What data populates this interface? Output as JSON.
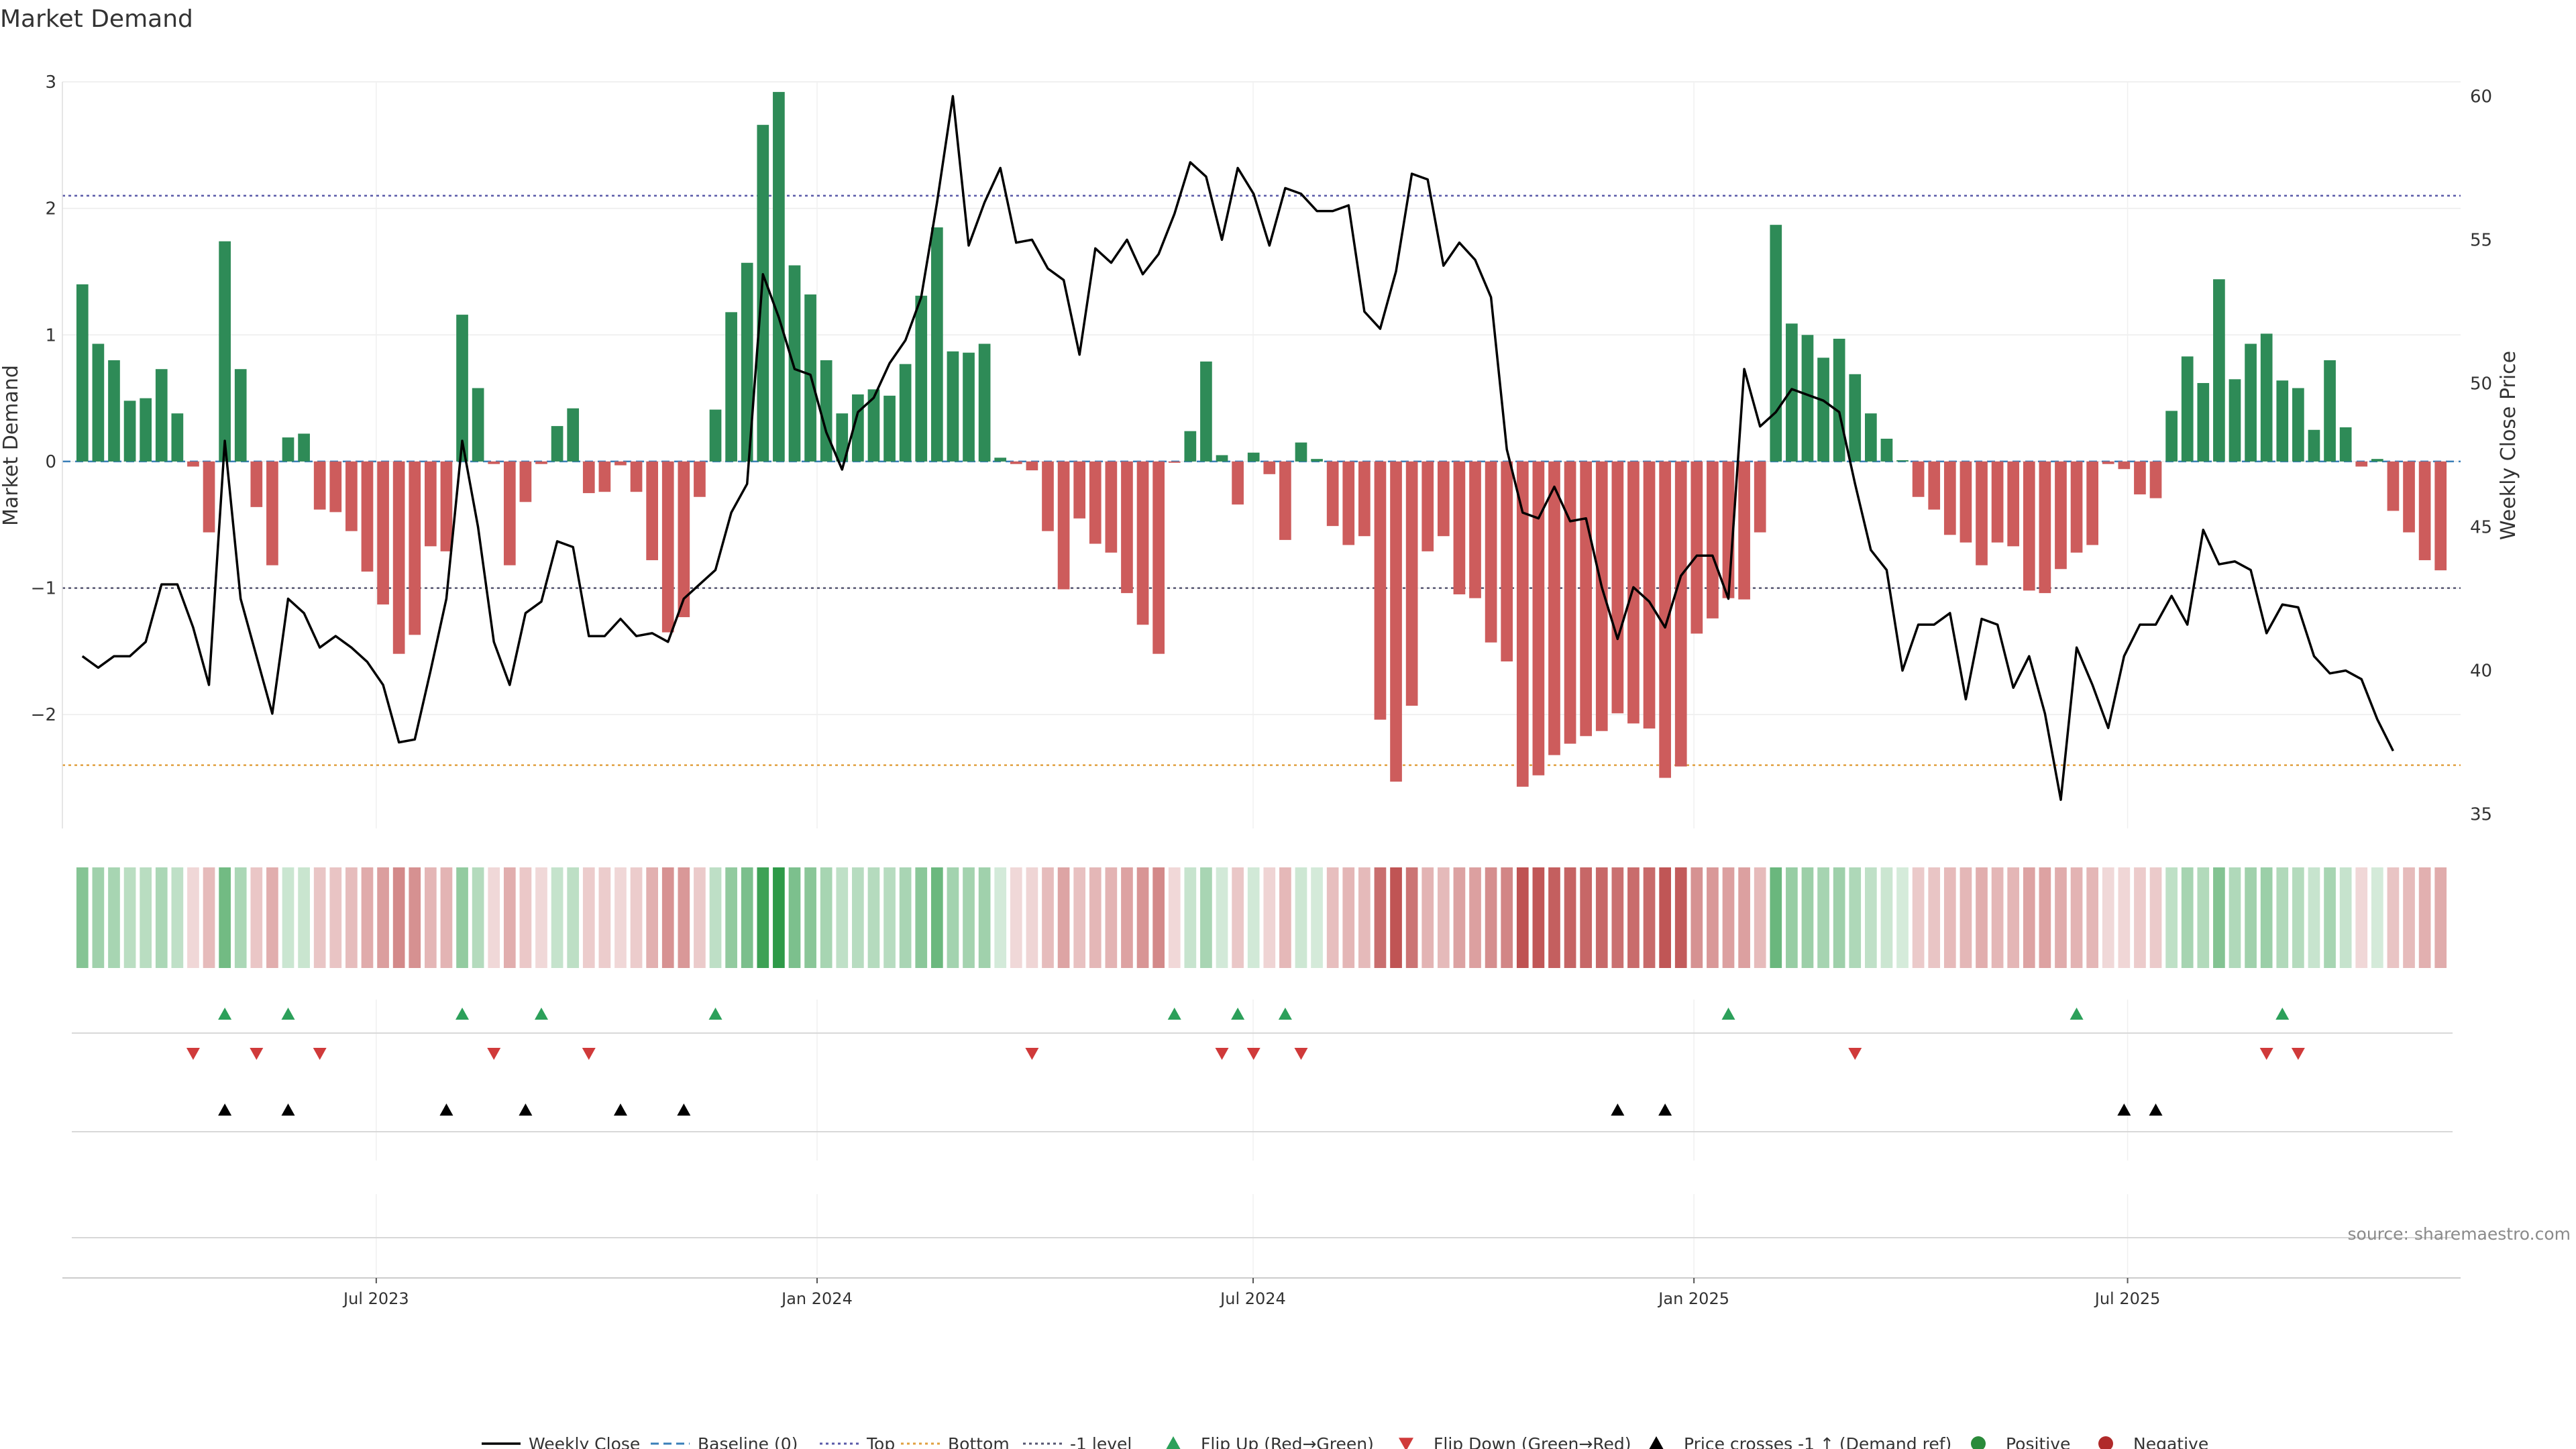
{
  "chart_data": {
    "type": "bar",
    "title": "Market Demand",
    "ylabel": "Market Demand",
    "y2label": "Weekly Close Price",
    "ylim": [
      -2.9,
      3.0
    ],
    "y2lim": [
      34.5,
      60.5
    ],
    "yticks": [
      3,
      2,
      1,
      0,
      -1,
      -2
    ],
    "ytick_labels": [
      "3",
      "2",
      "1",
      "0",
      "−1",
      "−2"
    ],
    "y2ticks": [
      60,
      55,
      50,
      45,
      40,
      35
    ],
    "y2tick_labels": [
      "60",
      "55",
      "50",
      "45",
      "40",
      "35"
    ],
    "x_start": "2023-02-20",
    "x_end": "2025-11-17",
    "xticks": [
      {
        "date": "2023-07-01",
        "label": "Jul 2023"
      },
      {
        "date": "2024-01-01",
        "label": "Jan 2024"
      },
      {
        "date": "2024-07-01",
        "label": "Jul 2024"
      },
      {
        "date": "2025-01-01",
        "label": "Jan 2025"
      },
      {
        "date": "2025-07-01",
        "label": "Jul 2025"
      }
    ],
    "reference_lines": {
      "top": 2.1,
      "bottom": -2.4,
      "minus_one": -1.0,
      "baseline": 0
    },
    "demand": [
      1.4,
      0.93,
      0.8,
      0.48,
      0.5,
      0.73,
      0.38,
      -0.04,
      -0.56,
      1.74,
      0.73,
      -0.36,
      -0.82,
      0.19,
      0.22,
      -0.38,
      -0.4,
      -0.55,
      -0.87,
      -1.13,
      -1.52,
      -1.37,
      -0.67,
      -0.71,
      1.16,
      0.58,
      -0.02,
      -0.82,
      -0.32,
      -0.02,
      0.28,
      0.42,
      -0.25,
      -0.24,
      -0.03,
      -0.24,
      -0.78,
      -1.35,
      -1.23,
      -0.28,
      0.41,
      1.18,
      1.57,
      2.66,
      2.92,
      1.55,
      1.32,
      0.8,
      0.38,
      0.53,
      0.57,
      0.52,
      0.77,
      1.31,
      1.85,
      0.87,
      0.86,
      0.93,
      0.03,
      -0.02,
      -0.07,
      -0.55,
      -1.01,
      -0.45,
      -0.65,
      -0.72,
      -1.04,
      -1.29,
      -1.52,
      -0.01,
      0.24,
      0.79,
      0.05,
      -0.34,
      0.07,
      -0.1,
      -0.62,
      0.15,
      0.02,
      -0.51,
      -0.66,
      -0.59,
      -2.04,
      -2.53,
      -1.93,
      -0.71,
      -0.59,
      -1.05,
      -1.08,
      -1.43,
      -1.58,
      -2.57,
      -2.48,
      -2.32,
      -2.23,
      -2.17,
      -2.13,
      -1.99,
      -2.07,
      -2.11,
      -2.5,
      -2.41,
      -1.36,
      -1.24,
      -1.08,
      -1.09,
      -0.56,
      1.87,
      1.09,
      1.0,
      0.82,
      0.97,
      0.69,
      0.38,
      0.18,
      0.01,
      -0.28,
      -0.38,
      -0.58,
      -0.64,
      -0.82,
      -0.64,
      -0.67,
      -1.02,
      -1.04,
      -0.85,
      -0.72,
      -0.66,
      -0.02,
      -0.06,
      -0.26,
      -0.29,
      0.4,
      0.83,
      0.62,
      1.44,
      0.65,
      0.93,
      1.01,
      0.64,
      0.58,
      0.25,
      0.8,
      0.27,
      -0.04,
      0.02,
      -0.39,
      -0.56,
      -0.78,
      -0.86
    ],
    "close": [
      40.5,
      40.1,
      40.5,
      40.5,
      41.0,
      43.0,
      43.0,
      41.5,
      39.5,
      48.0,
      42.5,
      40.5,
      38.5,
      42.5,
      42.0,
      40.8,
      41.2,
      40.8,
      40.3,
      39.5,
      37.5,
      37.6,
      40.0,
      42.5,
      48.0,
      45.0,
      41.0,
      39.5,
      42.0,
      42.4,
      44.5,
      44.3,
      41.2,
      41.2,
      41.8,
      41.2,
      41.3,
      41.0,
      42.5,
      43.0,
      43.5,
      45.5,
      46.5,
      53.8,
      52.3,
      50.5,
      50.3,
      48.3,
      47.0,
      49.0,
      49.5,
      50.7,
      51.5,
      53.0,
      56.3,
      60.0,
      54.8,
      56.3,
      57.5,
      54.9,
      55.0,
      54.0,
      53.6,
      51.0,
      54.7,
      54.2,
      55.0,
      53.8,
      54.5,
      55.9,
      57.7,
      57.2,
      55.0,
      57.5,
      56.6,
      54.8,
      56.8,
      56.6,
      56.0,
      56.0,
      56.2,
      52.5,
      51.9,
      53.9,
      57.3,
      57.1,
      54.1,
      54.9,
      54.3,
      53.0,
      47.7,
      45.5,
      45.3,
      46.4,
      45.2,
      45.3,
      42.9,
      41.1,
      42.9,
      42.4,
      41.5,
      43.3,
      44.0,
      44.0,
      42.5,
      50.5,
      48.5,
      49.0,
      49.8,
      49.6,
      49.4,
      49.0,
      46.5,
      44.2,
      43.5,
      40.0,
      41.6,
      41.6,
      42.0,
      39.0,
      41.8,
      41.6,
      39.4,
      40.5,
      38.5,
      35.5,
      40.8,
      39.5,
      38.0,
      40.5,
      41.6,
      41.6,
      42.6,
      41.6,
      44.9,
      43.7,
      43.8,
      43.5,
      41.3,
      42.3,
      42.2,
      40.5,
      39.9,
      40.0,
      39.7,
      38.3,
      37.2
    ],
    "flips_up": [
      9,
      13,
      24,
      29,
      40,
      69,
      73,
      76,
      104,
      126,
      139
    ],
    "flips_down": [
      7,
      11,
      15,
      26,
      32,
      60,
      72,
      74,
      77,
      112,
      138,
      140
    ],
    "price_crosses_up": [
      9,
      13,
      23,
      28,
      34,
      38,
      97,
      100,
      129,
      131
    ],
    "legend": [
      {
        "key": "weekly_close",
        "label": "Weekly Close",
        "color": "#000000",
        "style": "line"
      },
      {
        "key": "baseline",
        "label": "Baseline (0)",
        "color": "#3a7fb8",
        "style": "dashed"
      },
      {
        "key": "top",
        "label": "Top",
        "color": "#5a5aa8",
        "style": "dotted"
      },
      {
        "key": "bottom",
        "label": "Bottom",
        "color": "#e0a040",
        "style": "dotted"
      },
      {
        "key": "minus_one",
        "label": "-1 level",
        "color": "#555570",
        "style": "dotted"
      },
      {
        "key": "flip_up",
        "label": "Flip Up (Red→Green)",
        "color": "#2ca05a",
        "style": "triangle-up"
      },
      {
        "key": "flip_down",
        "label": "Flip Down (Green→Red)",
        "color": "#d03a3a",
        "style": "triangle-down"
      },
      {
        "key": "price_cross",
        "label": "Price crosses -1 ↑ (Demand ref)",
        "color": "#000000",
        "style": "triangle-up"
      },
      {
        "key": "positive",
        "label": "Positive",
        "color": "#2a8a3a",
        "style": "circle"
      },
      {
        "key": "negative",
        "label": "Negative",
        "color": "#b02a2a",
        "style": "circle"
      }
    ],
    "colors": {
      "positive_bar": "#2e8b57",
      "negative_bar": "#cd5c5c",
      "heat_positive": "#2e9a48",
      "heat_negative": "#b84040",
      "close_line": "#000000"
    },
    "grid": true,
    "legend_position": "bottom-center"
  },
  "source_text": "source: sharemaestro.com"
}
